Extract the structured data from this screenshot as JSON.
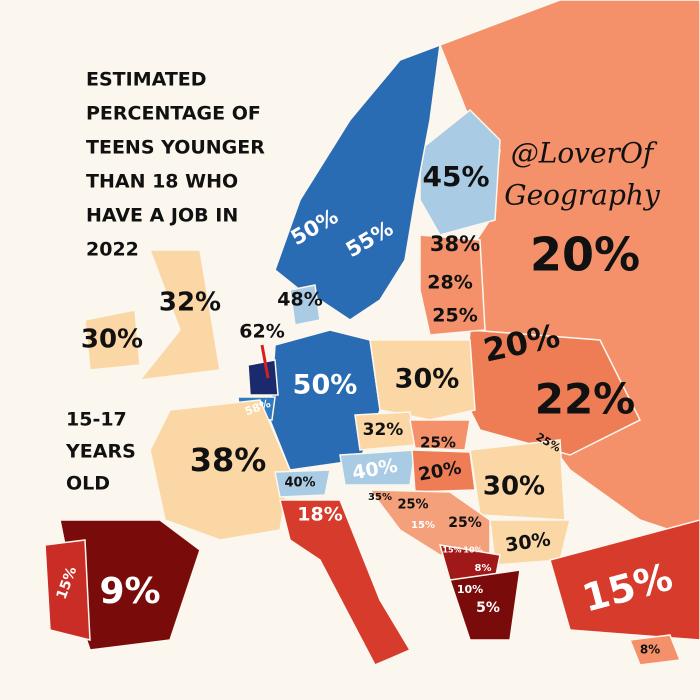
{
  "title_lines": [
    "ESTIMATED",
    "PERCENTAGE OF",
    "TEENS YOUNGER",
    "THAN 18 WHO",
    "HAVE A JOB IN",
    "2022"
  ],
  "watermark_lines": [
    "@LoverOf",
    "Geography"
  ],
  "subtitle_lines": [
    "15-17",
    "YEARS",
    "OLD"
  ],
  "labels": [
    "20%",
    "22%",
    "20%",
    "45%",
    "38%",
    "28%",
    "25%",
    "50%",
    "55%",
    "48%",
    "32%",
    "30%",
    "62%",
    "58%",
    "50%",
    "30%",
    "32%",
    "25%",
    "40%",
    "20%",
    "25%",
    "38%",
    "30%",
    "40%",
    "18%",
    "35%",
    "25%",
    "15%",
    "25%",
    "30%",
    "15%",
    "10%",
    "8%",
    "10%",
    "5%",
    "15%",
    "9%",
    "15%",
    "8%"
  ]
}
